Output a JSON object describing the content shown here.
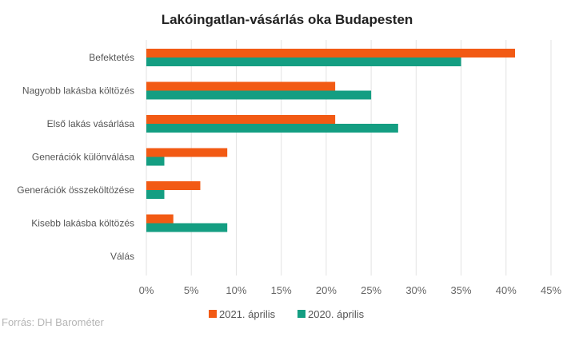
{
  "chart_data": {
    "type": "bar",
    "orientation": "horizontal",
    "title": "Lakóingatlan-vásárlás oka Budapesten",
    "categories": [
      "Befektetés",
      "Nagyobb lakásba költözés",
      "Első lakás vásárlása",
      "Generációk különválása",
      "Generációk összeköltözése",
      "Kisebb lakásba költözés",
      "Válás"
    ],
    "series": [
      {
        "name": "2021. április",
        "color": "#f25a14",
        "values": [
          41,
          21,
          21,
          9,
          6,
          3,
          0
        ]
      },
      {
        "name": "2020. április",
        "color": "#149e82",
        "values": [
          35,
          25,
          28,
          2,
          2,
          9,
          0
        ]
      }
    ],
    "xlim": [
      0,
      45
    ],
    "x_ticks": [
      "0%",
      "5%",
      "10%",
      "15%",
      "20%",
      "25%",
      "30%",
      "35%",
      "40%",
      "45%"
    ],
    "grid": true,
    "legend_position": "bottom",
    "source": "Forrás: DH Barométer"
  }
}
